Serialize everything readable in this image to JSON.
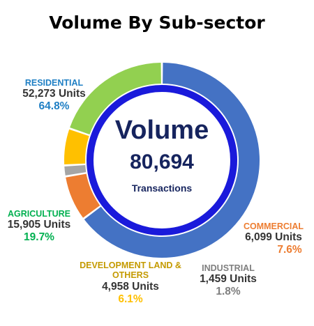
{
  "title": "Volume By Sub-sector",
  "center": {
    "heading": "Volume",
    "total": "80,694",
    "caption": "Transactions"
  },
  "colors": {
    "ring": "#1a1adb",
    "heading": "#16245e"
  },
  "chart_data": {
    "type": "pie",
    "variant": "donut",
    "title": "Volume By Sub-sector",
    "total": 80694,
    "slices": [
      {
        "category": "RESIDENTIAL",
        "units": 52273,
        "units_label": "52,273 Units",
        "percent": 64.8,
        "percent_label": "64.8%",
        "color": "#4472c4",
        "label_color": "#1f7fc4"
      },
      {
        "category": "COMMERCIAL",
        "units": 6099,
        "units_label": "6,099 Units",
        "percent": 7.6,
        "percent_label": "7.6%",
        "color": "#ed7d31",
        "label_color": "#ed7d31"
      },
      {
        "category": "INDUSTRIAL",
        "units": 1459,
        "units_label": "1,459 Units",
        "percent": 1.8,
        "percent_label": "1.8%",
        "color": "#a5a5a5",
        "label_color": "#7f7f7f"
      },
      {
        "category": "DEVELOPMENT LAND & OTHERS",
        "units": 4958,
        "units_label": "4,958 Units",
        "percent": 6.1,
        "percent_label": "6.1%",
        "color": "#ffc000",
        "label_color": "#ffc000",
        "category_label_color": "#c49a00"
      },
      {
        "category": "AGRICULTURE",
        "units": 15905,
        "units_label": "15,905 Units",
        "percent": 19.7,
        "percent_label": "19.7%",
        "color": "#92d050",
        "label_color": "#00b050"
      }
    ]
  }
}
